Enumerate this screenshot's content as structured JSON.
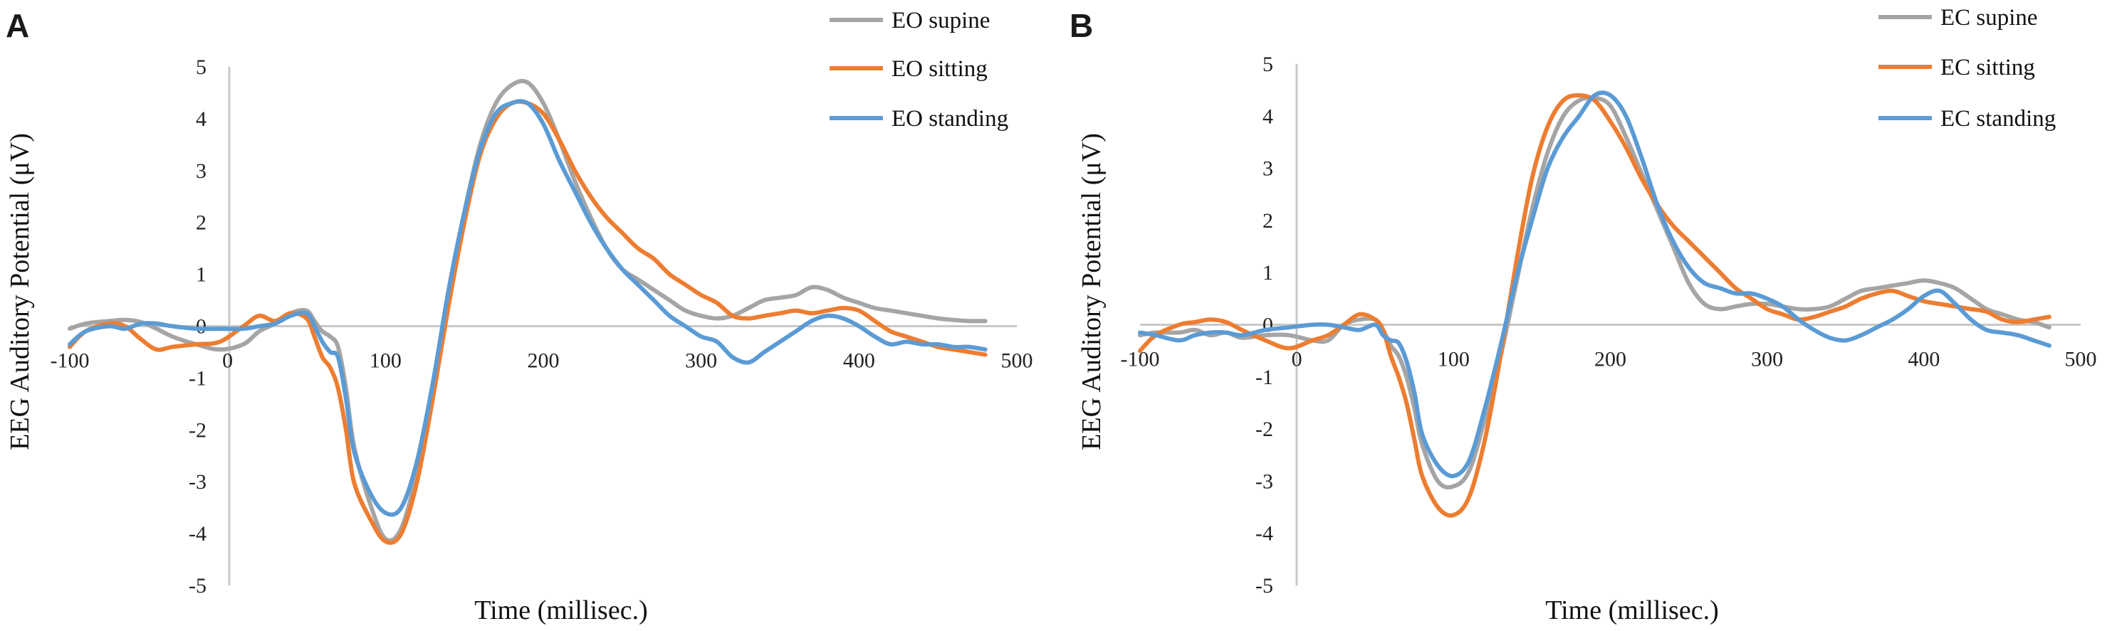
{
  "chart_data": [
    {
      "type": "line",
      "panel_label": "A",
      "xlabel": "Time (millisec.)",
      "ylabel": "EEG Auditory Potential (μV)",
      "xlim": [
        -100,
        500
      ],
      "ylim": [
        -5,
        5
      ],
      "xticks": [
        "-100",
        "0",
        "100",
        "200",
        "300",
        "400",
        "500"
      ],
      "yticks": [
        "5",
        "4",
        "3",
        "2",
        "1",
        "0",
        "-1",
        "-2",
        "-3",
        "-4",
        "-5"
      ],
      "legend_position": "top-right",
      "series": [
        {
          "name": "EO supine",
          "color": "#a5a5a5",
          "x": [
            -100,
            -90,
            -75,
            -65,
            -55,
            -45,
            -35,
            -20,
            -5,
            10,
            20,
            30,
            40,
            50,
            55,
            60,
            65,
            70,
            75,
            80,
            90,
            100,
            110,
            120,
            130,
            140,
            150,
            160,
            170,
            180,
            190,
            200,
            210,
            220,
            230,
            240,
            250,
            260,
            270,
            280,
            290,
            300,
            310,
            320,
            330,
            340,
            350,
            360,
            370,
            380,
            390,
            400,
            410,
            420,
            430,
            440,
            450,
            460,
            470,
            480
          ],
          "y": [
            -0.05,
            0.05,
            0.1,
            0.12,
            0.08,
            -0.05,
            -0.2,
            -0.35,
            -0.45,
            -0.35,
            -0.1,
            0.05,
            0.25,
            0.3,
            0.1,
            -0.1,
            -0.2,
            -0.4,
            -1.2,
            -2.3,
            -3.4,
            -4.1,
            -3.9,
            -2.8,
            -1.2,
            0.6,
            2.2,
            3.5,
            4.3,
            4.65,
            4.7,
            4.3,
            3.6,
            2.8,
            2.1,
            1.5,
            1.1,
            0.9,
            0.7,
            0.5,
            0.3,
            0.2,
            0.15,
            0.2,
            0.35,
            0.5,
            0.55,
            0.6,
            0.75,
            0.7,
            0.55,
            0.45,
            0.35,
            0.3,
            0.25,
            0.2,
            0.15,
            0.12,
            0.1,
            0.1
          ]
        },
        {
          "name": "EO sitting",
          "color": "#ed7d31",
          "x": [
            -100,
            -90,
            -75,
            -65,
            -55,
            -45,
            -35,
            -20,
            -5,
            10,
            20,
            30,
            40,
            50,
            55,
            60,
            65,
            70,
            75,
            80,
            90,
            100,
            110,
            120,
            130,
            140,
            150,
            160,
            170,
            180,
            190,
            200,
            210,
            220,
            230,
            240,
            250,
            260,
            270,
            280,
            290,
            300,
            310,
            320,
            330,
            340,
            350,
            360,
            370,
            380,
            390,
            400,
            410,
            420,
            430,
            440,
            450,
            460,
            470,
            480
          ],
          "y": [
            -0.4,
            -0.1,
            0.05,
            0.0,
            -0.25,
            -0.45,
            -0.4,
            -0.35,
            -0.3,
            0.0,
            0.2,
            0.1,
            0.25,
            0.15,
            -0.2,
            -0.6,
            -0.8,
            -1.2,
            -2.0,
            -3.0,
            -3.7,
            -4.15,
            -4.0,
            -3.0,
            -1.4,
            0.4,
            2.0,
            3.3,
            4.0,
            4.3,
            4.3,
            4.1,
            3.6,
            3.0,
            2.5,
            2.1,
            1.8,
            1.5,
            1.3,
            1.0,
            0.8,
            0.6,
            0.45,
            0.2,
            0.15,
            0.2,
            0.25,
            0.3,
            0.25,
            0.3,
            0.35,
            0.3,
            0.1,
            -0.1,
            -0.2,
            -0.3,
            -0.4,
            -0.45,
            -0.5,
            -0.55
          ]
        },
        {
          "name": "EO standing",
          "color": "#5b9bd5",
          "x": [
            -100,
            -90,
            -75,
            -65,
            -55,
            -45,
            -35,
            -20,
            -5,
            10,
            20,
            30,
            40,
            50,
            55,
            60,
            65,
            70,
            75,
            80,
            90,
            100,
            110,
            120,
            130,
            140,
            150,
            160,
            170,
            180,
            190,
            200,
            210,
            220,
            230,
            240,
            250,
            260,
            270,
            280,
            290,
            300,
            310,
            320,
            330,
            340,
            350,
            360,
            370,
            380,
            390,
            400,
            410,
            420,
            430,
            440,
            450,
            460,
            470,
            480
          ],
          "y": [
            -0.35,
            -0.1,
            0.0,
            -0.05,
            0.05,
            0.05,
            0.0,
            -0.05,
            -0.05,
            -0.05,
            0.0,
            0.05,
            0.2,
            0.25,
            0.0,
            -0.3,
            -0.5,
            -0.6,
            -1.4,
            -2.4,
            -3.2,
            -3.6,
            -3.5,
            -2.6,
            -1.1,
            0.7,
            2.2,
            3.4,
            4.1,
            4.3,
            4.3,
            3.9,
            3.2,
            2.6,
            2.0,
            1.5,
            1.1,
            0.8,
            0.5,
            0.2,
            0.0,
            -0.2,
            -0.3,
            -0.6,
            -0.7,
            -0.5,
            -0.3,
            -0.1,
            0.1,
            0.2,
            0.15,
            0.0,
            -0.2,
            -0.35,
            -0.3,
            -0.35,
            -0.35,
            -0.4,
            -0.4,
            -0.45
          ]
        }
      ]
    },
    {
      "type": "line",
      "panel_label": "B",
      "xlabel": "Time (millisec.)",
      "ylabel": "EEG Auditory Potential (μV)",
      "xlim": [
        -100,
        500
      ],
      "ylim": [
        -5,
        5
      ],
      "xticks": [
        "-100",
        "0",
        "100",
        "200",
        "300",
        "400",
        "500"
      ],
      "yticks": [
        "5",
        "4",
        "3",
        "2",
        "1",
        "0",
        "-1",
        "-2",
        "-3",
        "-4",
        "-5"
      ],
      "legend_position": "top-right",
      "series": [
        {
          "name": "EC supine",
          "color": "#a5a5a5",
          "x": [
            -100,
            -90,
            -75,
            -65,
            -55,
            -45,
            -35,
            -20,
            -5,
            10,
            20,
            30,
            40,
            50,
            55,
            60,
            65,
            70,
            75,
            80,
            90,
            100,
            110,
            120,
            130,
            140,
            150,
            160,
            170,
            180,
            190,
            200,
            210,
            220,
            230,
            240,
            250,
            260,
            270,
            280,
            290,
            300,
            310,
            320,
            330,
            340,
            350,
            360,
            370,
            380,
            390,
            400,
            410,
            420,
            430,
            440,
            450,
            460,
            470,
            480
          ],
          "y": [
            -0.2,
            -0.15,
            -0.15,
            -0.1,
            -0.2,
            -0.15,
            -0.25,
            -0.2,
            -0.2,
            -0.3,
            -0.3,
            0.0,
            0.1,
            0.1,
            -0.1,
            -0.4,
            -0.6,
            -1.0,
            -1.6,
            -2.3,
            -3.0,
            -3.1,
            -2.8,
            -1.8,
            -0.6,
            0.8,
            2.2,
            3.3,
            4.0,
            4.3,
            4.35,
            4.2,
            3.6,
            2.9,
            2.2,
            1.5,
            0.8,
            0.4,
            0.3,
            0.35,
            0.4,
            0.4,
            0.35,
            0.3,
            0.3,
            0.35,
            0.5,
            0.65,
            0.7,
            0.75,
            0.8,
            0.85,
            0.8,
            0.7,
            0.5,
            0.3,
            0.2,
            0.1,
            0.05,
            -0.05
          ]
        },
        {
          "name": "EC sitting",
          "color": "#ed7d31",
          "x": [
            -100,
            -90,
            -75,
            -65,
            -55,
            -45,
            -35,
            -20,
            -5,
            10,
            20,
            30,
            40,
            50,
            55,
            60,
            65,
            70,
            75,
            80,
            90,
            100,
            110,
            120,
            130,
            140,
            150,
            160,
            170,
            180,
            190,
            200,
            210,
            220,
            230,
            240,
            250,
            260,
            270,
            280,
            290,
            300,
            310,
            320,
            330,
            340,
            350,
            360,
            370,
            380,
            390,
            400,
            410,
            420,
            430,
            440,
            450,
            460,
            470,
            480
          ],
          "y": [
            -0.5,
            -0.2,
            0.0,
            0.05,
            0.1,
            0.05,
            -0.1,
            -0.3,
            -0.45,
            -0.3,
            -0.2,
            0.0,
            0.2,
            0.1,
            -0.1,
            -0.6,
            -1.0,
            -1.5,
            -2.2,
            -2.9,
            -3.5,
            -3.65,
            -3.3,
            -2.2,
            -0.6,
            1.2,
            2.8,
            3.8,
            4.3,
            4.4,
            4.3,
            3.9,
            3.4,
            2.8,
            2.3,
            1.9,
            1.6,
            1.3,
            1.0,
            0.7,
            0.5,
            0.3,
            0.2,
            0.1,
            0.15,
            0.25,
            0.35,
            0.5,
            0.6,
            0.65,
            0.55,
            0.45,
            0.4,
            0.35,
            0.3,
            0.25,
            0.1,
            0.05,
            0.1,
            0.15
          ]
        },
        {
          "name": "EC standing",
          "color": "#5b9bd5",
          "x": [
            -100,
            -90,
            -75,
            -65,
            -55,
            -45,
            -35,
            -20,
            -5,
            10,
            20,
            30,
            40,
            50,
            55,
            60,
            65,
            70,
            75,
            80,
            90,
            100,
            110,
            120,
            130,
            140,
            150,
            160,
            170,
            180,
            190,
            200,
            210,
            220,
            230,
            240,
            250,
            260,
            270,
            280,
            290,
            300,
            310,
            320,
            330,
            340,
            350,
            360,
            370,
            380,
            390,
            400,
            410,
            420,
            430,
            440,
            450,
            460,
            470,
            480
          ],
          "y": [
            -0.15,
            -0.2,
            -0.3,
            -0.2,
            -0.15,
            -0.15,
            -0.2,
            -0.1,
            -0.05,
            0.0,
            0.0,
            -0.05,
            -0.1,
            0.0,
            -0.2,
            -0.3,
            -0.35,
            -0.7,
            -1.3,
            -2.1,
            -2.7,
            -2.9,
            -2.6,
            -1.6,
            -0.4,
            0.9,
            2.0,
            3.0,
            3.6,
            4.0,
            4.4,
            4.4,
            4.0,
            3.2,
            2.3,
            1.6,
            1.1,
            0.8,
            0.7,
            0.6,
            0.6,
            0.5,
            0.35,
            0.1,
            -0.1,
            -0.25,
            -0.3,
            -0.2,
            -0.05,
            0.1,
            0.3,
            0.55,
            0.65,
            0.4,
            0.1,
            -0.1,
            -0.15,
            -0.2,
            -0.3,
            -0.4
          ]
        }
      ]
    }
  ]
}
